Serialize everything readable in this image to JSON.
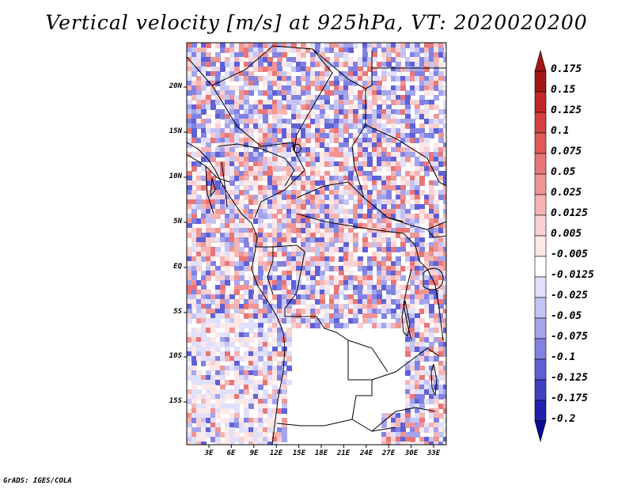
{
  "title": "Vertical velocity [m/s] at 925hPa, VT: 2020020200",
  "credit": "GrADS: IGES/COLA",
  "map": {
    "variable": "Vertical velocity",
    "units": "m/s",
    "level": "925hPa",
    "valid_time": "2020020200",
    "lat_labels": [
      "20N",
      "15N",
      "10N",
      "5N",
      "EQ",
      "5S",
      "10S",
      "15S"
    ],
    "lon_labels": [
      "3E",
      "6E",
      "9E",
      "12E",
      "15E",
      "18E",
      "21E",
      "24E",
      "27E",
      "30E",
      "33E"
    ]
  },
  "colorbar": {
    "labels": [
      "0.175",
      "0.15",
      "0.125",
      "0.1",
      "0.075",
      "0.05",
      "0.025",
      "0.0125",
      "0.005",
      "-0.005",
      "-0.0125",
      "-0.025",
      "-0.05",
      "-0.075",
      "-0.1",
      "-0.125",
      "-0.175",
      "-0.2"
    ],
    "colors": [
      "#a11818",
      "#c02828",
      "#d44040",
      "#e05a5a",
      "#e87676",
      "#f09494",
      "#f5b4b4",
      "#fad0d0",
      "#fde8e8",
      "#ffffff",
      "#e0e0fa",
      "#c4c4f4",
      "#a4a4ec",
      "#8282e2",
      "#6060d6",
      "#4040c4",
      "#2020ae",
      "#0a0a92"
    ],
    "top_color": "#a11818",
    "bottom_color": "#0a0a92"
  }
}
